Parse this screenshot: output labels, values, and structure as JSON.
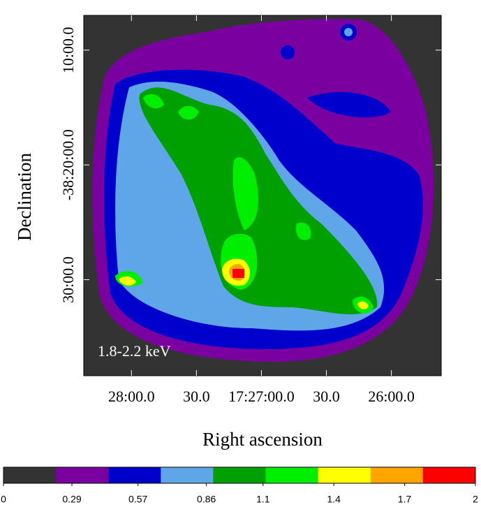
{
  "chart_data": {
    "type": "image",
    "annotation": "1.8-2.2 keV",
    "xlabel": "Right ascension",
    "ylabel": "Declination",
    "xlim": [
      62902,
      62737
    ],
    "xticks": [
      {
        "value": 62880,
        "label": "28:00.0"
      },
      {
        "value": 62850,
        "label": "30.0"
      },
      {
        "value": 62820,
        "label": "17:27:00.0"
      },
      {
        "value": 62790,
        "label": "30.0"
      },
      {
        "value": 62760,
        "label": "26:00.0"
      }
    ],
    "ylim": [
      -38.6394,
      -38.1162
    ],
    "yticks": [
      {
        "value": -38.16667,
        "label": "10:00.0"
      },
      {
        "value": -38.33333,
        "label": "-38:20:00.0"
      },
      {
        "value": -38.5,
        "label": "30:00.0"
      }
    ],
    "colorbar": {
      "clim": [
        0,
        2
      ],
      "ticks": [
        0,
        0.29,
        0.57,
        0.86,
        1.1,
        1.4,
        1.7,
        2
      ],
      "colors": [
        "#333333",
        "#7a00a0",
        "#0000cc",
        "#5fa6e8",
        "#00a000",
        "#00ee00",
        "#ffff00",
        "#ffa500",
        "#ff0000"
      ]
    }
  }
}
